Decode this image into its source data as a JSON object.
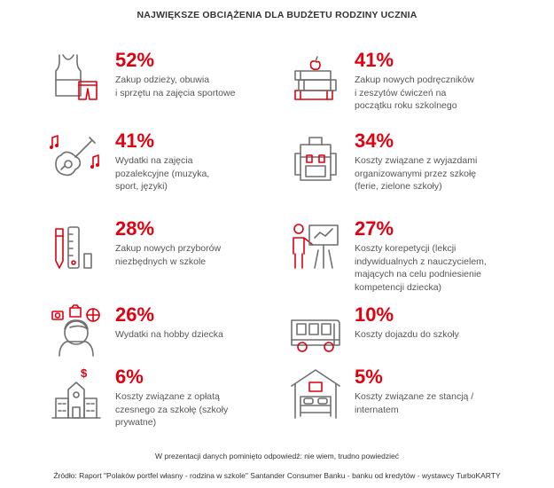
{
  "title": "NAJWIĘKSZE OBCIĄŻENIA DLA BUDŻETU RODZINY UCZNIA",
  "chart_data": {
    "type": "table",
    "title": "NAJWIĘKSZE OBCIĄŻENIA DLA BUDŻETU RODZINY UCZNIA",
    "unit": "%",
    "items": [
      {
        "icon": "clothes-icon",
        "value": 52,
        "label": "52%",
        "lines": [
          "Zakup odzieży, obuwia",
          "i sprzętu na zajęcia sportowe"
        ]
      },
      {
        "icon": "guitar-icon",
        "value": 41,
        "label": "41%",
        "lines": [
          "Wydatki na zajęcia",
          "pozalekcyjne (muzyka,",
          "sport, języki)"
        ]
      },
      {
        "icon": "school-supplies-icon",
        "value": 28,
        "label": "28%",
        "lines": [
          "Zakup nowych przyborów",
          "niezbędnych w szkole"
        ]
      },
      {
        "icon": "hobby-icon",
        "value": 26,
        "label": "26%",
        "lines": [
          "Wydatki na hobby dziecka"
        ]
      },
      {
        "icon": "school-building-icon",
        "value": 6,
        "label": "6%",
        "lines": [
          "Koszty związane z opłatą",
          "czesnego za szkołę (szkoły",
          "prywatne)"
        ]
      },
      {
        "icon": "books-icon",
        "value": 41,
        "label": "41%",
        "lines": [
          "Zakup nowych podręczników",
          "i zeszytów ćwiczeń na",
          "początku roku szkolnego"
        ]
      },
      {
        "icon": "backpack-icon",
        "value": 34,
        "label": "34%",
        "lines": [
          "Koszty związane z wyjazdami",
          "organizowanymi przez szkołę",
          "(ferie, zielone szkoły)"
        ]
      },
      {
        "icon": "tutor-icon",
        "value": 27,
        "label": "27%",
        "lines": [
          "Koszty korepetycji (lekcji",
          "indywidualnych z nauczycielem,",
          "mających na celu podniesienie",
          "kompetencji dziecka)"
        ]
      },
      {
        "icon": "bus-icon",
        "value": 10,
        "label": "10%",
        "lines": [
          "Koszty dojazdu do szkoły"
        ]
      },
      {
        "icon": "bed-icon",
        "value": 5,
        "label": "5%",
        "lines": [
          "Koszty związane ze stancją /",
          "internatem"
        ]
      }
    ]
  },
  "note": "W prezentacji danych pominięto odpowiedź: nie wiem, trudno powiedzieć",
  "source": "Źródło: Raport \"Polaków portfel własny - rodzina w szkole\" Santander Consumer Banku - banku od kredytów - wystawcy TurboKARTY",
  "colors": {
    "accent": "#e1000f",
    "icon": "#6f6f6f",
    "text": "#555555"
  }
}
